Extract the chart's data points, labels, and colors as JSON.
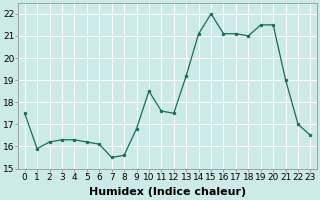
{
  "x": [
    0,
    1,
    2,
    3,
    4,
    5,
    6,
    7,
    8,
    9,
    10,
    11,
    12,
    13,
    14,
    15,
    16,
    17,
    18,
    19,
    20,
    21,
    22,
    23
  ],
  "y": [
    17.5,
    15.9,
    16.2,
    16.3,
    16.3,
    16.2,
    16.1,
    15.5,
    15.6,
    16.8,
    18.5,
    17.6,
    17.5,
    19.2,
    21.1,
    22.0,
    21.1,
    21.1,
    21.0,
    21.5,
    21.5,
    19.0,
    17.0,
    16.5
  ],
  "line_color": "#1a6b5a",
  "marker": "o",
  "marker_size": 2.0,
  "bg_color": "#cceae7",
  "grid_color": "#ffffff",
  "xlabel": "Humidex (Indice chaleur)",
  "ylim": [
    15,
    22.5
  ],
  "yticks": [
    15,
    16,
    17,
    18,
    19,
    20,
    21,
    22
  ],
  "xtick_labels": [
    "0",
    "1",
    "2",
    "3",
    "4",
    "5",
    "6",
    "7",
    "8",
    "9",
    "1011",
    "1213",
    "1415",
    "1617",
    "1819",
    "2021",
    "2223"
  ],
  "xlim": [
    -0.5,
    23.5
  ],
  "tick_fontsize": 6.5,
  "label_fontsize": 8.0
}
